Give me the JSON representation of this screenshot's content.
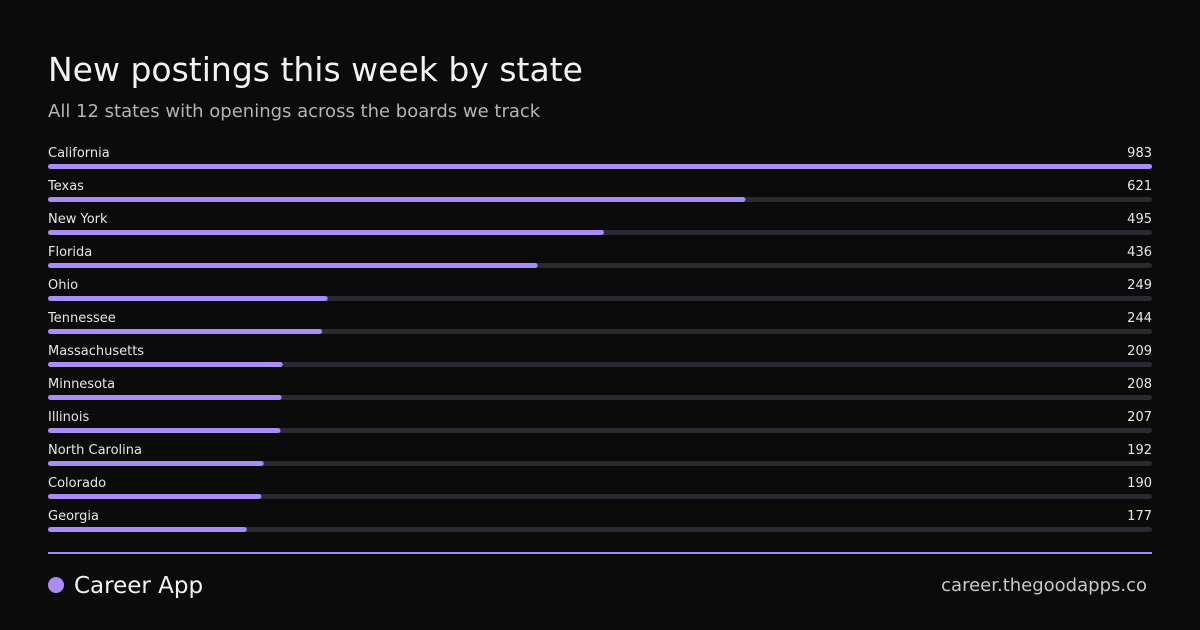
{
  "chart_data": {
    "type": "bar",
    "orientation": "horizontal",
    "title": "New postings this week by state",
    "subtitle": "All 12 states with openings across the boards we track",
    "categories": [
      "California",
      "Texas",
      "New York",
      "Florida",
      "Ohio",
      "Tennessee",
      "Massachusetts",
      "Minnesota",
      "Illinois",
      "North Carolina",
      "Colorado",
      "Georgia"
    ],
    "values": [
      983,
      621,
      495,
      436,
      249,
      244,
      209,
      208,
      207,
      192,
      190,
      177
    ],
    "color": "#a98cf5",
    "track_color": "#2a2a31",
    "xlim": [
      0,
      983
    ]
  },
  "footer": {
    "brand": "Career App",
    "url": "career.thegoodapps.co"
  }
}
